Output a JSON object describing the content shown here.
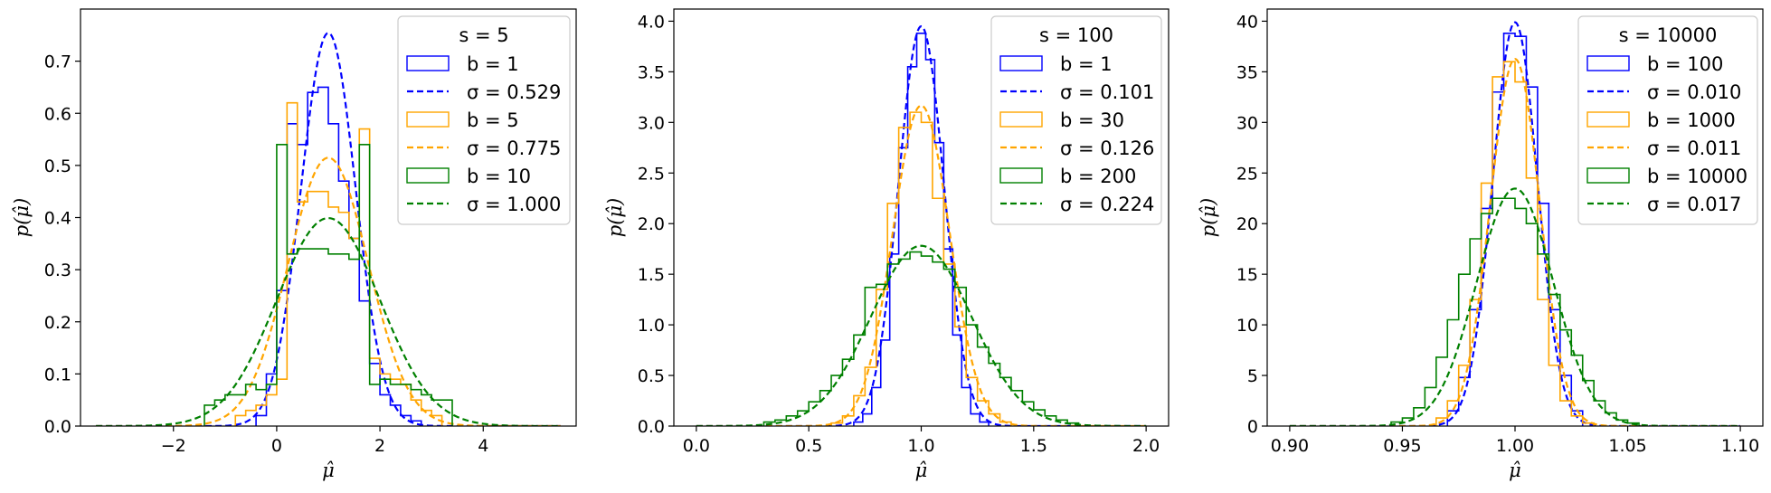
{
  "chart_data": [
    {
      "type": "histogram",
      "xlabel": "μ̂",
      "ylabel": "p(μ̂)",
      "xlim": [
        -3.8,
        5.8
      ],
      "ylim": [
        0,
        0.8
      ],
      "xticks": [
        -2,
        0,
        2,
        4
      ],
      "xtick_labels": [
        "−2",
        "0",
        "2",
        "4"
      ],
      "yticks": [
        0,
        0.1,
        0.2,
        0.3,
        0.4,
        0.5,
        0.6,
        0.7
      ],
      "ytick_labels": [
        "0.0",
        "0.1",
        "0.2",
        "0.3",
        "0.4",
        "0.5",
        "0.6",
        "0.7"
      ],
      "grid": false,
      "legend_position": "top-right",
      "legend_title": "s = 5",
      "series": [
        {
          "label": "b = 1",
          "kind": "step",
          "color": "#0000ff",
          "bins": [
            -0.4,
            -0.2,
            0.0,
            0.2,
            0.4,
            0.6,
            0.8,
            1.0,
            1.2,
            1.4,
            1.6,
            1.8,
            2.0,
            2.2,
            2.4,
            2.6,
            2.8
          ],
          "values": [
            0.02,
            0.1,
            0.26,
            0.58,
            0.54,
            0.64,
            0.65,
            0.58,
            0.47,
            0.36,
            0.24,
            0.12,
            0.06,
            0.04,
            0.02,
            0.01
          ]
        },
        {
          "label": "σ = 0.529",
          "kind": "gaussian",
          "color": "#0000ff",
          "mean": 1.0,
          "sigma": 0.529,
          "x_range": [
            -3.5,
            5.5
          ]
        },
        {
          "label": "b = 5",
          "kind": "step",
          "color": "#ffa500",
          "bins": [
            -0.8,
            -0.6,
            -0.4,
            -0.2,
            0.0,
            0.2,
            0.4,
            0.6,
            0.8,
            1.0,
            1.2,
            1.4,
            1.6,
            1.8,
            2.0,
            2.2,
            2.4,
            2.6,
            2.8,
            3.0,
            3.2
          ],
          "values": [
            0.02,
            0.03,
            0.04,
            0.06,
            0.09,
            0.62,
            0.43,
            0.45,
            0.45,
            0.42,
            0.41,
            0.36,
            0.57,
            0.13,
            0.1,
            0.09,
            0.08,
            0.05,
            0.03,
            0.02
          ]
        },
        {
          "label": "σ = 0.775",
          "kind": "gaussian",
          "color": "#ffa500",
          "mean": 1.0,
          "sigma": 0.775,
          "x_range": [
            -3.5,
            5.5
          ]
        },
        {
          "label": "b = 10",
          "kind": "step",
          "color": "#008000",
          "bins": [
            -1.4,
            -1.2,
            -1.0,
            -0.8,
            -0.6,
            -0.4,
            -0.2,
            0.0,
            0.2,
            0.4,
            0.6,
            0.8,
            1.0,
            1.2,
            1.4,
            1.6,
            1.8,
            2.0,
            2.2,
            2.4,
            2.6,
            2.8,
            3.0,
            3.2,
            3.4
          ],
          "values": [
            0.04,
            0.05,
            0.06,
            0.06,
            0.08,
            0.07,
            0.08,
            0.54,
            0.33,
            0.34,
            0.34,
            0.34,
            0.33,
            0.33,
            0.32,
            0.54,
            0.08,
            0.09,
            0.08,
            0.08,
            0.07,
            0.06,
            0.05,
            0.05
          ]
        },
        {
          "label": "σ = 1.000",
          "kind": "gaussian",
          "color": "#008000",
          "mean": 1.0,
          "sigma": 1.0,
          "x_range": [
            -3.5,
            5.5
          ]
        }
      ]
    },
    {
      "type": "histogram",
      "xlabel": "μ̂",
      "ylabel": "p(μ̂)",
      "xlim": [
        -0.1,
        2.1
      ],
      "ylim": [
        0,
        4.12
      ],
      "xticks": [
        0,
        0.5,
        1,
        1.5,
        2
      ],
      "xtick_labels": [
        "0.0",
        "0.5",
        "1.0",
        "1.5",
        "2.0"
      ],
      "yticks": [
        0,
        0.5,
        1,
        1.5,
        2,
        2.5,
        3,
        3.5,
        4
      ],
      "ytick_labels": [
        "0.0",
        "0.5",
        "1.0",
        "1.5",
        "2.0",
        "2.5",
        "3.0",
        "3.5",
        "4.0"
      ],
      "grid": false,
      "legend_position": "top-right",
      "legend_title": "s = 100",
      "series": [
        {
          "label": "b = 1",
          "kind": "step",
          "color": "#0000ff",
          "bins": [
            0.7,
            0.74,
            0.78,
            0.82,
            0.86,
            0.9,
            0.94,
            0.98,
            1.02,
            1.06,
            1.1,
            1.14,
            1.18,
            1.22,
            1.26,
            1.3
          ],
          "values": [
            0.04,
            0.12,
            0.38,
            0.85,
            1.7,
            2.75,
            3.55,
            3.88,
            3.62,
            2.8,
            1.75,
            0.9,
            0.38,
            0.12,
            0.04
          ]
        },
        {
          "label": "σ = 0.101",
          "kind": "gaussian",
          "color": "#0000ff",
          "mean": 1.0,
          "sigma": 0.101,
          "x_range": [
            0,
            2
          ]
        },
        {
          "label": "b = 30",
          "kind": "step",
          "color": "#ffa500",
          "bins": [
            0.6,
            0.65,
            0.7,
            0.75,
            0.8,
            0.85,
            0.9,
            0.95,
            1.0,
            1.05,
            1.1,
            1.15,
            1.2,
            1.25,
            1.3,
            1.35,
            1.4
          ],
          "values": [
            0.03,
            0.1,
            0.3,
            0.58,
            1.35,
            2.2,
            2.95,
            3.1,
            3.0,
            2.25,
            1.6,
            0.98,
            0.48,
            0.25,
            0.12,
            0.04
          ]
        },
        {
          "label": "σ = 0.126",
          "kind": "gaussian",
          "color": "#ffa500",
          "mean": 1.0,
          "sigma": 0.126,
          "x_range": [
            0,
            2
          ]
        },
        {
          "label": "b = 200",
          "kind": "step",
          "color": "#008000",
          "bins": [
            0.3,
            0.35,
            0.4,
            0.45,
            0.5,
            0.55,
            0.6,
            0.65,
            0.7,
            0.75,
            0.8,
            0.85,
            0.9,
            0.95,
            1.0,
            1.05,
            1.1,
            1.15,
            1.2,
            1.25,
            1.3,
            1.35,
            1.4,
            1.45,
            1.5,
            1.55,
            1.6,
            1.65,
            1.7
          ],
          "values": [
            0.04,
            0.06,
            0.1,
            0.15,
            0.24,
            0.35,
            0.5,
            0.66,
            0.9,
            1.37,
            1.4,
            1.6,
            1.65,
            1.72,
            1.68,
            1.62,
            1.55,
            1.37,
            1.0,
            0.78,
            0.62,
            0.48,
            0.35,
            0.24,
            0.16,
            0.1,
            0.06,
            0.03
          ]
        },
        {
          "label": "σ = 0.224",
          "kind": "gaussian",
          "color": "#008000",
          "mean": 1.0,
          "sigma": 0.224,
          "x_range": [
            0,
            2
          ]
        }
      ]
    },
    {
      "type": "histogram",
      "xlabel": "μ̂",
      "ylabel": "p(μ̂)",
      "xlim": [
        0.89,
        1.11
      ],
      "ylim": [
        0,
        41.2
      ],
      "xticks": [
        0.9,
        0.95,
        1.0,
        1.05,
        1.1
      ],
      "xtick_labels": [
        "0.90",
        "0.95",
        "1.00",
        "1.05",
        "1.10"
      ],
      "yticks": [
        0,
        5,
        10,
        15,
        20,
        25,
        30,
        35,
        40
      ],
      "ytick_labels": [
        "0",
        "5",
        "10",
        "15",
        "20",
        "25",
        "30",
        "35",
        "40"
      ],
      "grid": false,
      "legend_position": "top-right",
      "legend_title": "s = 10000",
      "series": [
        {
          "label": "b = 100",
          "kind": "step",
          "color": "#0000ff",
          "bins": [
            0.97,
            0.975,
            0.98,
            0.985,
            0.99,
            0.995,
            1.0,
            1.005,
            1.01,
            1.015,
            1.02,
            1.025,
            1.03
          ],
          "values": [
            1.5,
            4.8,
            11.5,
            21.5,
            33.0,
            38.8,
            38.5,
            33.5,
            22.0,
            11.5,
            5.0,
            1.5
          ]
        },
        {
          "label": "σ = 0.010",
          "kind": "gaussian",
          "color": "#0000ff",
          "mean": 1.0,
          "sigma": 0.01,
          "x_range": [
            0.9,
            1.1
          ]
        },
        {
          "label": "b = 1000",
          "kind": "step",
          "color": "#ffa500",
          "bins": [
            0.965,
            0.97,
            0.975,
            0.98,
            0.985,
            0.99,
            0.995,
            1.0,
            1.005,
            1.01,
            1.015,
            1.02,
            1.025,
            1.03,
            1.035
          ],
          "values": [
            0.8,
            2.5,
            6.0,
            12.5,
            24.0,
            34.5,
            36.0,
            34.0,
            24.5,
            12.5,
            6.0,
            2.5,
            1.0,
            0.3
          ]
        },
        {
          "label": "σ = 0.011",
          "kind": "gaussian",
          "color": "#ffa500",
          "mean": 1.0,
          "sigma": 0.011,
          "x_range": [
            0.9,
            1.1
          ]
        },
        {
          "label": "b = 10000",
          "kind": "step",
          "color": "#008000",
          "bins": [
            0.945,
            0.95,
            0.955,
            0.96,
            0.965,
            0.97,
            0.975,
            0.98,
            0.985,
            0.99,
            0.995,
            1.0,
            1.005,
            1.01,
            1.015,
            1.02,
            1.025,
            1.03,
            1.035,
            1.04,
            1.045,
            1.05,
            1.055
          ],
          "values": [
            0.4,
            0.8,
            1.8,
            3.8,
            6.8,
            10.5,
            15.0,
            18.5,
            21.0,
            22.5,
            22.5,
            21.5,
            20.0,
            17.0,
            13.0,
            9.5,
            7.0,
            4.5,
            2.5,
            1.3,
            0.6,
            0.3
          ]
        },
        {
          "label": "σ = 0.017",
          "kind": "gaussian",
          "color": "#008000",
          "mean": 1.0,
          "sigma": 0.017,
          "x_range": [
            0.9,
            1.1
          ]
        }
      ]
    }
  ]
}
